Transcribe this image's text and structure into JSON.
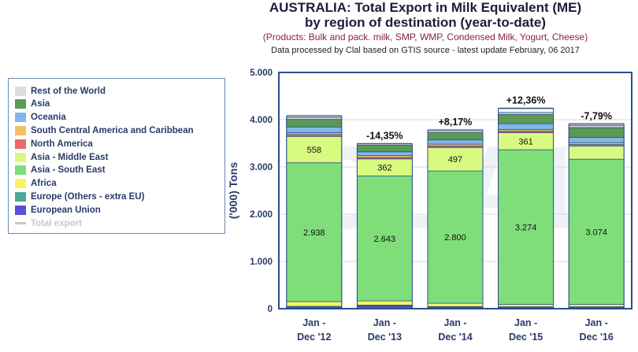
{
  "header": {
    "title_line1": "AUSTRALIA: Total Export in Milk Equivalent (ME)",
    "title_line2": "by region of destination (year-to-date)",
    "products": "(Products: Bulk and pack. milk, SMP, WMP, Condensed Milk, Yogurt, Cheese)",
    "source": "Data processed by Clal based on GTIS source - latest update February, 06 2017"
  },
  "chart_data": {
    "type": "bar",
    "stacked": true,
    "ylabel": "('000) Tons",
    "ylim": [
      0,
      5000
    ],
    "y_ticks": [
      "0",
      "1.000",
      "2.000",
      "3.000",
      "4.000",
      "5.000"
    ],
    "y_tick_values": [
      0,
      1000,
      2000,
      3000,
      4000,
      5000
    ],
    "categories": [
      [
        "Jan -",
        "Dec '12"
      ],
      [
        "Jan -",
        "Dec '13"
      ],
      [
        "Jan -",
        "Dec '14"
      ],
      [
        "Jan -",
        "Dec '15"
      ],
      [
        "Jan -",
        "Dec '16"
      ]
    ],
    "series": [
      {
        "name": "European Union",
        "color": "#5a50d8",
        "values": [
          30,
          60,
          30,
          25,
          25
        ]
      },
      {
        "name": "Europe (Others - extra EU)",
        "color": "#4aa89a",
        "values": [
          20,
          15,
          15,
          15,
          15
        ]
      },
      {
        "name": "Africa",
        "color": "#f5f560",
        "values": [
          100,
          90,
          70,
          50,
          50
        ]
      },
      {
        "name": "Asia - South East",
        "color": "#80de7a",
        "values": [
          2938,
          2643,
          2800,
          3274,
          3074
        ]
      },
      {
        "name": "Asia - Middle East",
        "color": "#d8fa80",
        "values": [
          558,
          362,
          497,
          361,
          280
        ]
      },
      {
        "name": "North America",
        "color": "#e86a6a",
        "values": [
          40,
          30,
          30,
          30,
          30
        ]
      },
      {
        "name": "South Central America and Caribbean",
        "color": "#f5c060",
        "values": [
          40,
          40,
          40,
          40,
          40
        ]
      },
      {
        "name": "Oceania",
        "color": "#80b8e8",
        "values": [
          120,
          80,
          90,
          120,
          110
        ]
      },
      {
        "name": "Asia",
        "color": "#5a9a55",
        "values": [
          160,
          140,
          160,
          200,
          210
        ]
      },
      {
        "name": "Rest of the World",
        "color": "#dcdcdc",
        "values": [
          40,
          30,
          40,
          40,
          40
        ]
      }
    ],
    "total_export": [
      4080,
      3490,
      3780,
      4240,
      3910
    ],
    "total_label": "Total export",
    "total_color": "#c8c8c8",
    "value_labels": {
      "Asia - South East": [
        "2.938",
        "2.643",
        "2.800",
        "3.274",
        "3.074"
      ],
      "Asia - Middle East": [
        "558",
        "362",
        "497",
        "361",
        ""
      ]
    },
    "change_labels": [
      "",
      "-14,35%",
      "+8,17%",
      "+12,36%",
      "-7,79%"
    ],
    "legend_order": [
      "Rest of the World",
      "Asia",
      "Oceania",
      "South Central America and Caribbean",
      "North America",
      "Asia - Middle East",
      "Asia - South East",
      "Africa",
      "Europe (Others - extra EU)",
      "European Union",
      "Total export"
    ],
    "legend_position": "left",
    "grid": true,
    "watermark": "CLAL"
  }
}
